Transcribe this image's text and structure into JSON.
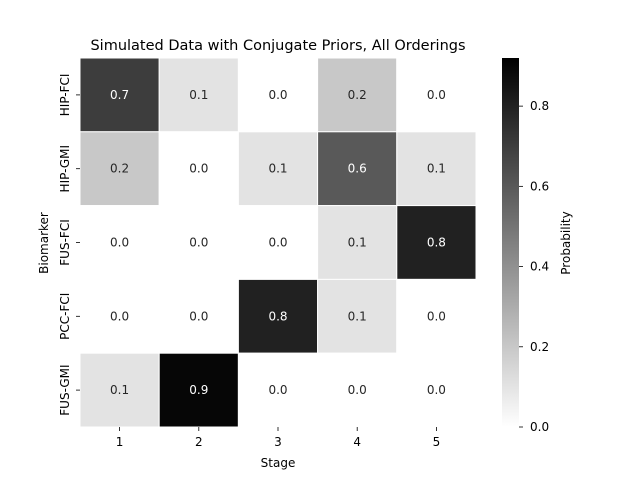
{
  "chart_data": {
    "type": "heatmap",
    "title": "Simulated Data with Conjugate Priors, All Orderings",
    "xlabel": "Stage",
    "ylabel": "Biomarker",
    "x_categories": [
      "1",
      "2",
      "3",
      "4",
      "5"
    ],
    "y_categories": [
      "HIP-FCI",
      "HIP-GMI",
      "FUS-FCI",
      "PCC-FCI",
      "FUS-GMI"
    ],
    "values": [
      [
        0.7,
        0.1,
        0.0,
        0.2,
        0.0
      ],
      [
        0.2,
        0.0,
        0.1,
        0.6,
        0.1
      ],
      [
        0.0,
        0.0,
        0.0,
        0.1,
        0.8
      ],
      [
        0.0,
        0.0,
        0.8,
        0.1,
        0.0
      ],
      [
        0.1,
        0.9,
        0.0,
        0.0,
        0.0
      ]
    ],
    "colorbar": {
      "label": "Probability",
      "vmin": 0.0,
      "vmax": 0.92,
      "ticks": [
        "0.0",
        "0.2",
        "0.4",
        "0.6",
        "0.8"
      ],
      "colormap": "Greys",
      "low_color": "#ffffff",
      "high_color": "#000000"
    },
    "cell_border_color": "#ffffff"
  }
}
